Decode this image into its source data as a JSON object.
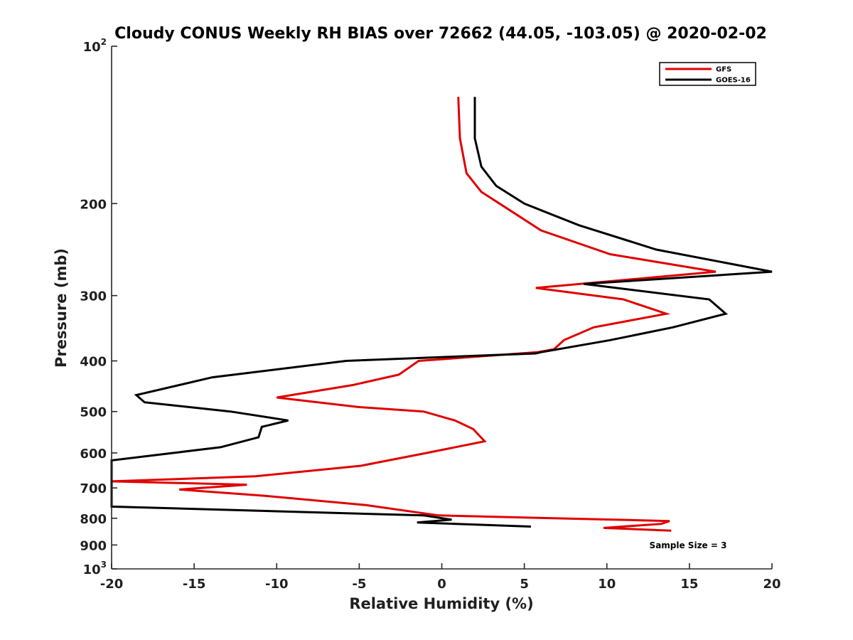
{
  "chart_data": {
    "type": "line",
    "title": "Cloudy CONUS Weekly RH BIAS over 72662 (44.05, -103.05) @ 2020-02-02",
    "xlabel": "Relative Humidity (%)",
    "ylabel": "Pressure (mb)",
    "xlim": [
      -20,
      20
    ],
    "ylim": [
      100,
      1000
    ],
    "y_scale": "log",
    "y_reversed": true,
    "x_ticks": [
      "-20",
      "-15",
      "-10",
      "-5",
      "0",
      "5",
      "10",
      "15",
      "20"
    ],
    "y_ticks": [
      {
        "value": 100,
        "label": "10",
        "sup": "2"
      },
      {
        "value": 200,
        "label": "200",
        "sup": ""
      },
      {
        "value": 300,
        "label": "300",
        "sup": ""
      },
      {
        "value": 400,
        "label": "400",
        "sup": ""
      },
      {
        "value": 500,
        "label": "500",
        "sup": ""
      },
      {
        "value": 600,
        "label": "600",
        "sup": ""
      },
      {
        "value": 700,
        "label": "700",
        "sup": ""
      },
      {
        "value": 800,
        "label": "800",
        "sup": ""
      },
      {
        "value": 900,
        "label": "900",
        "sup": ""
      },
      {
        "value": 1000,
        "label": "10",
        "sup": "3"
      }
    ],
    "grid": false,
    "legend_position": "top-right",
    "annotation": "Sample Size = 3",
    "series": [
      {
        "name": "GFS",
        "color": "#e00000",
        "points": [
          [
            1.0,
            125
          ],
          [
            1.1,
            150
          ],
          [
            1.5,
            175
          ],
          [
            2.4,
            190
          ],
          [
            3.5,
            200
          ],
          [
            6.0,
            225
          ],
          [
            10.2,
            250
          ],
          [
            16.6,
            270
          ],
          [
            5.7,
            290
          ],
          [
            11.0,
            305
          ],
          [
            13.6,
            325
          ],
          [
            9.2,
            345
          ],
          [
            7.4,
            365
          ],
          [
            6.8,
            380
          ],
          [
            5.8,
            385
          ],
          [
            -1.4,
            400
          ],
          [
            -2.6,
            425
          ],
          [
            -5.4,
            445
          ],
          [
            -10.0,
            470
          ],
          [
            -5.1,
            490
          ],
          [
            -1.1,
            500
          ],
          [
            0.8,
            520
          ],
          [
            1.9,
            540
          ],
          [
            2.6,
            570
          ],
          [
            -0.9,
            600
          ],
          [
            -4.9,
            635
          ],
          [
            -11.3,
            665
          ],
          [
            -20.0,
            680
          ],
          [
            -11.8,
            690
          ],
          [
            -15.9,
            705
          ],
          [
            -10.7,
            725
          ],
          [
            -4.6,
            755
          ],
          [
            -0.2,
            790
          ],
          [
            13.8,
            810
          ],
          [
            13.3,
            820
          ],
          [
            9.8,
            835
          ],
          [
            13.9,
            845
          ]
        ]
      },
      {
        "name": "GOES-16",
        "color": "#000000",
        "points": [
          [
            2.0,
            125
          ],
          [
            2.0,
            150
          ],
          [
            2.4,
            170
          ],
          [
            3.3,
            185
          ],
          [
            5.0,
            200
          ],
          [
            8.3,
            220
          ],
          [
            13.0,
            245
          ],
          [
            20.0,
            270
          ],
          [
            8.6,
            285
          ],
          [
            16.2,
            305
          ],
          [
            17.2,
            325
          ],
          [
            14.0,
            345
          ],
          [
            10.2,
            365
          ],
          [
            6.0,
            385
          ],
          [
            5.7,
            387
          ],
          [
            -5.8,
            400
          ],
          [
            -13.9,
            430
          ],
          [
            -18.5,
            465
          ],
          [
            -18.0,
            480
          ],
          [
            -12.8,
            500
          ],
          [
            -9.3,
            520
          ],
          [
            -10.9,
            535
          ],
          [
            -11.1,
            560
          ],
          [
            -13.4,
            585
          ],
          [
            -20.0,
            620
          ],
          [
            -20.0,
            640
          ],
          [
            -20.0,
            760
          ],
          [
            -1.1,
            790
          ],
          [
            0.6,
            805
          ],
          [
            -1.5,
            815
          ],
          [
            5.4,
            830
          ]
        ]
      }
    ]
  }
}
